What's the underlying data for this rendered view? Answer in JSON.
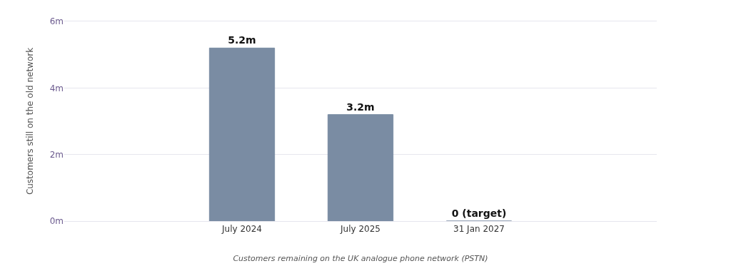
{
  "chart_data": {
    "type": "bar",
    "ylabel": "Customers still on the old network",
    "xlabel": "Customers remaining on the UK analogue phone network (PSTN)",
    "categories": [
      null,
      "July 2024",
      "July 2025",
      "31 Jan 2027",
      null
    ],
    "values": [
      null,
      5.2,
      3.2,
      0,
      null
    ],
    "value_labels": [
      null,
      "5.2m",
      "3.2m",
      "0 (target)",
      null
    ],
    "color": "#7a8ca3",
    "ylim": [
      0,
      6
    ],
    "yticks": [
      {
        "value": 0,
        "label": "0m"
      },
      {
        "value": 2,
        "label": "2m"
      },
      {
        "value": 4,
        "label": "4m"
      },
      {
        "value": 6,
        "label": "6m"
      }
    ],
    "grid": "y",
    "legend": false
  }
}
